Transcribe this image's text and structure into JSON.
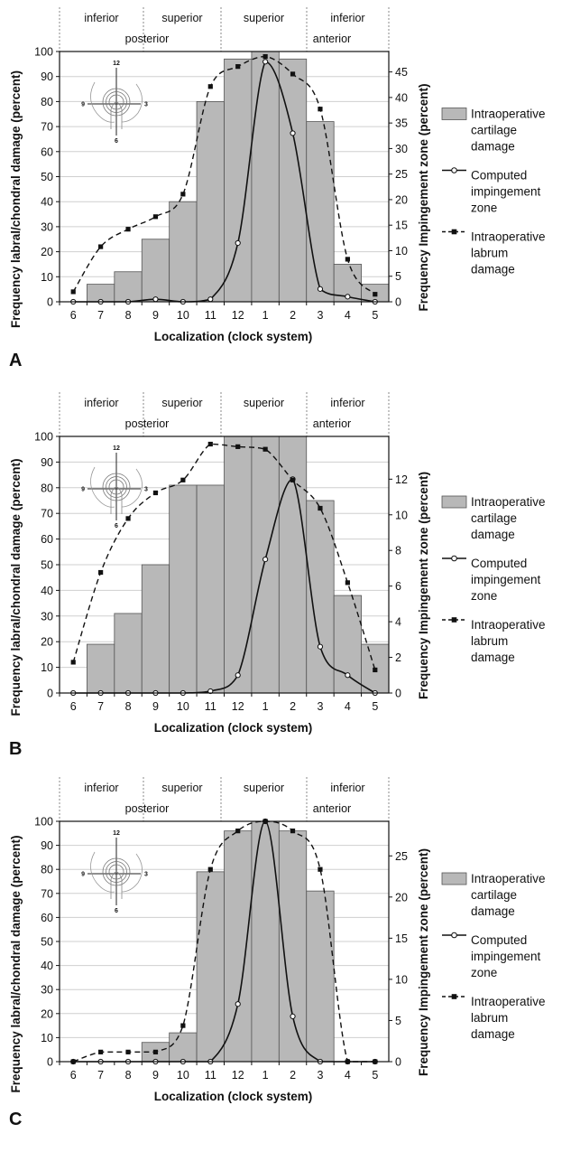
{
  "chart_data": [
    {
      "type": "bar",
      "panel": "A",
      "zones": {
        "top": [
          "inferior",
          "superior",
          "superior",
          "inferior"
        ],
        "bottom": [
          "posterior",
          "anterior"
        ]
      },
      "categories": [
        "6",
        "7",
        "8",
        "9",
        "10",
        "11",
        "12",
        "1",
        "2",
        "3",
        "4",
        "5"
      ],
      "xlabel": "Localization (clock system)",
      "ylabel": "Frequency labral/chondral damage (percent)",
      "y2label": "Frequency Impingement zone (percent)",
      "ylim": [
        0,
        100
      ],
      "yticks": [
        "0",
        "10",
        "20",
        "30",
        "40",
        "50",
        "60",
        "70",
        "80",
        "90",
        "100"
      ],
      "y2lim": [
        0,
        49
      ],
      "y2ticks": [
        "0",
        "5",
        "10",
        "15",
        "20",
        "25",
        "30",
        "35",
        "40",
        "45"
      ],
      "series": [
        {
          "name": "Intraoperative cartilage damage",
          "kind": "bar",
          "axis": "left",
          "values": [
            0,
            7,
            12,
            25,
            40,
            80,
            97,
            100,
            97,
            72,
            15,
            7
          ]
        },
        {
          "name": "Computed impingement zone",
          "kind": "line-open-circle",
          "axis": "right",
          "values": [
            0,
            0,
            0,
            0.5,
            0,
            0.5,
            11.5,
            47,
            33,
            2.5,
            1,
            0
          ]
        },
        {
          "name": "Intraoperative labrum damage",
          "kind": "line-dashed-square",
          "axis": "left",
          "values": [
            4,
            22,
            29,
            34,
            43,
            86,
            94,
            98,
            91,
            77,
            17,
            3
          ]
        }
      ],
      "legend": [
        "Intraoperative",
        "cartilage",
        "damage",
        "Computed",
        "impingement",
        "zone",
        "Intraoperative",
        "labrum",
        "damage"
      ]
    },
    {
      "type": "bar",
      "panel": "B",
      "zones": {
        "top": [
          "inferior",
          "superior",
          "superior",
          "inferior"
        ],
        "bottom": [
          "posterior",
          "anterior"
        ]
      },
      "categories": [
        "6",
        "7",
        "8",
        "9",
        "10",
        "11",
        "12",
        "1",
        "2",
        "3",
        "4",
        "5"
      ],
      "xlabel": "Localization (clock system)",
      "ylabel": "Frequency labral/chondral damage (percent)",
      "y2label": "Frequency Impingement zone (percent)",
      "ylim": [
        0,
        100
      ],
      "yticks": [
        "0",
        "10",
        "20",
        "30",
        "40",
        "50",
        "60",
        "70",
        "80",
        "90",
        "100"
      ],
      "y2lim": [
        0,
        14.4
      ],
      "y2ticks": [
        "0",
        "2",
        "4",
        "6",
        "8",
        "10",
        "12"
      ],
      "series": [
        {
          "name": "Intraoperative cartilage damage",
          "kind": "bar",
          "axis": "left",
          "values": [
            0,
            19,
            31,
            50,
            81,
            81,
            100,
            100,
            100,
            75,
            38,
            19
          ]
        },
        {
          "name": "Computed impingement zone",
          "kind": "line-open-circle",
          "axis": "right",
          "values": [
            0,
            0,
            0,
            0,
            0,
            0.1,
            1,
            7.5,
            12,
            2.6,
            1,
            0
          ]
        },
        {
          "name": "Intraoperative labrum damage",
          "kind": "line-dashed-square",
          "axis": "left",
          "values": [
            12,
            47,
            68,
            78,
            83,
            97,
            96,
            95,
            83,
            72,
            43,
            9
          ]
        }
      ],
      "legend": [
        "Intraoperative",
        "cartilage",
        "damage",
        "Computed",
        "impingement",
        "zone",
        "Intraoperative",
        "labrum",
        "damage"
      ]
    },
    {
      "type": "bar",
      "panel": "C",
      "zones": {
        "top": [
          "inferior",
          "superior",
          "superior",
          "inferior"
        ],
        "bottom": [
          "posterior",
          "anterior"
        ]
      },
      "categories": [
        "6",
        "7",
        "8",
        "9",
        "10",
        "11",
        "12",
        "1",
        "2",
        "3",
        "4",
        "5"
      ],
      "xlabel": "Localization (clock system)",
      "ylabel": "Frequency labral/chondral damage (percent)",
      "y2label": "Frequency Impingement zone (percent)",
      "ylim": [
        0,
        100
      ],
      "yticks": [
        "0",
        "10",
        "20",
        "30",
        "40",
        "50",
        "60",
        "70",
        "80",
        "90",
        "100"
      ],
      "y2lim": [
        0,
        29.2
      ],
      "y2ticks": [
        "0",
        "5",
        "10",
        "15",
        "20",
        "25"
      ],
      "series": [
        {
          "name": "Intraoperative cartilage damage",
          "kind": "bar",
          "axis": "left",
          "values": [
            0,
            0,
            0,
            8,
            12,
            79,
            96,
            100,
            96,
            71,
            0,
            0
          ]
        },
        {
          "name": "Computed impingement zone",
          "kind": "line-open-circle",
          "axis": "right",
          "values": [
            0,
            0,
            0,
            0,
            0,
            0,
            7,
            29.2,
            5.5,
            0,
            0,
            0
          ]
        },
        {
          "name": "Intraoperative labrum damage",
          "kind": "line-dashed-square",
          "axis": "left",
          "values": [
            0,
            4,
            4,
            4,
            15,
            80,
            96,
            100,
            96,
            80,
            0,
            0
          ]
        }
      ],
      "legend": [
        "Intraoperative",
        "cartilage",
        "damage",
        "Computed",
        "impingement",
        "zone",
        "Intraoperative",
        "labrum",
        "damage"
      ]
    }
  ],
  "clock_labels": [
    "12",
    "3",
    "6",
    "9"
  ],
  "colors": {
    "bar_fill": "#b8b8b8",
    "bar_edge": "#555555",
    "line": "#111111",
    "grid": "#cfcfcf",
    "zone_divider": "#8a8a8a"
  }
}
